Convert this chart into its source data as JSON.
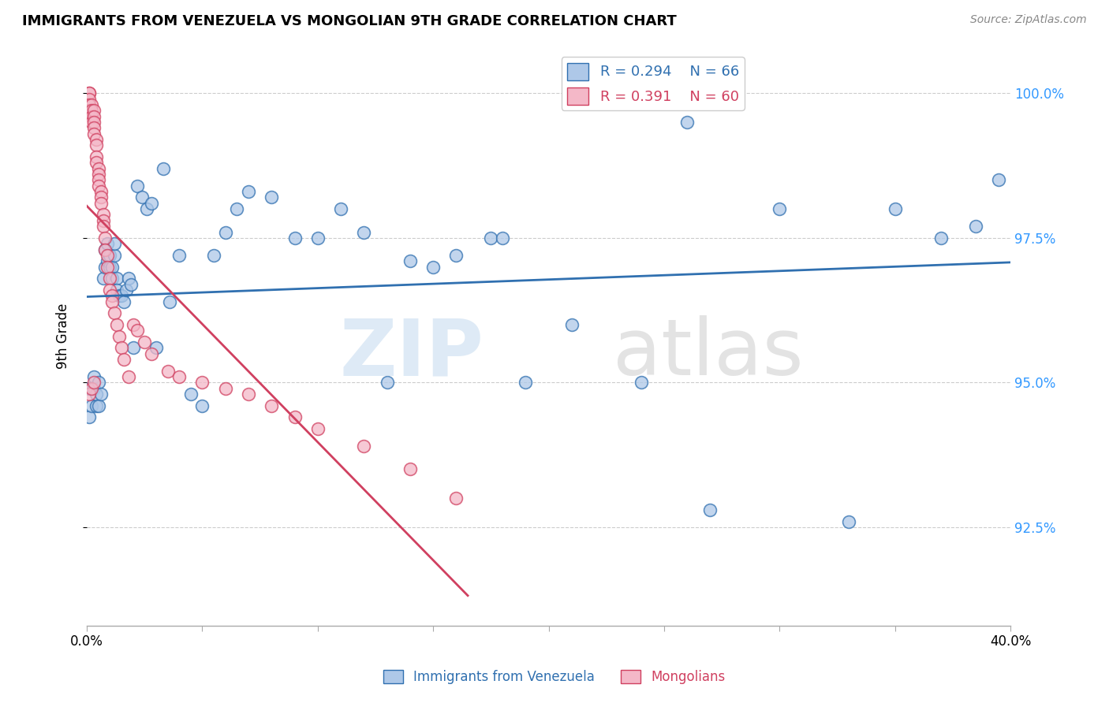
{
  "title": "IMMIGRANTS FROM VENEZUELA VS MONGOLIAN 9TH GRADE CORRELATION CHART",
  "source": "Source: ZipAtlas.com",
  "ylabel": "9th Grade",
  "x_min": 0.0,
  "x_max": 0.4,
  "y_min": 0.908,
  "y_max": 1.008,
  "x_ticks": [
    0.0,
    0.05,
    0.1,
    0.15,
    0.2,
    0.25,
    0.3,
    0.35,
    0.4
  ],
  "x_tick_labels": [
    "0.0%",
    "",
    "",
    "",
    "",
    "",
    "",
    "",
    "40.0%"
  ],
  "y_ticks": [
    0.925,
    0.95,
    0.975,
    1.0
  ],
  "y_tick_labels": [
    "92.5%",
    "95.0%",
    "97.5%",
    "100.0%"
  ],
  "legend_r1": "R = 0.294",
  "legend_n1": "N = 66",
  "legend_r2": "R = 0.391",
  "legend_n2": "N = 60",
  "blue_color": "#aec8e8",
  "pink_color": "#f4b8c8",
  "blue_line_color": "#3070b0",
  "pink_line_color": "#d04060",
  "blue_r": 0.294,
  "pink_r": 0.391,
  "blue_points_x": [
    0.001,
    0.001,
    0.002,
    0.003,
    0.003,
    0.004,
    0.004,
    0.005,
    0.005,
    0.006,
    0.007,
    0.008,
    0.008,
    0.009,
    0.009,
    0.01,
    0.01,
    0.011,
    0.011,
    0.012,
    0.012,
    0.013,
    0.013,
    0.014,
    0.015,
    0.016,
    0.017,
    0.018,
    0.019,
    0.02,
    0.022,
    0.024,
    0.026,
    0.028,
    0.03,
    0.033,
    0.036,
    0.04,
    0.045,
    0.05,
    0.055,
    0.06,
    0.065,
    0.07,
    0.08,
    0.09,
    0.1,
    0.11,
    0.12,
    0.13,
    0.14,
    0.15,
    0.16,
    0.175,
    0.19,
    0.21,
    0.24,
    0.27,
    0.3,
    0.33,
    0.35,
    0.37,
    0.385,
    0.395,
    0.26,
    0.18
  ],
  "blue_points_y": [
    0.949,
    0.944,
    0.946,
    0.949,
    0.951,
    0.946,
    0.948,
    0.946,
    0.95,
    0.948,
    0.968,
    0.97,
    0.973,
    0.971,
    0.974,
    0.97,
    0.972,
    0.97,
    0.968,
    0.972,
    0.974,
    0.968,
    0.966,
    0.965,
    0.965,
    0.964,
    0.966,
    0.968,
    0.967,
    0.956,
    0.984,
    0.982,
    0.98,
    0.981,
    0.956,
    0.987,
    0.964,
    0.972,
    0.948,
    0.946,
    0.972,
    0.976,
    0.98,
    0.983,
    0.982,
    0.975,
    0.975,
    0.98,
    0.976,
    0.95,
    0.971,
    0.97,
    0.972,
    0.975,
    0.95,
    0.96,
    0.95,
    0.928,
    0.98,
    0.926,
    0.98,
    0.975,
    0.977,
    0.985,
    0.995,
    0.975
  ],
  "pink_points_x": [
    0.001,
    0.001,
    0.001,
    0.001,
    0.001,
    0.002,
    0.002,
    0.002,
    0.002,
    0.003,
    0.003,
    0.003,
    0.003,
    0.003,
    0.004,
    0.004,
    0.004,
    0.004,
    0.005,
    0.005,
    0.005,
    0.005,
    0.006,
    0.006,
    0.006,
    0.007,
    0.007,
    0.007,
    0.008,
    0.008,
    0.009,
    0.009,
    0.01,
    0.01,
    0.011,
    0.011,
    0.012,
    0.013,
    0.014,
    0.015,
    0.016,
    0.018,
    0.02,
    0.022,
    0.025,
    0.028,
    0.035,
    0.04,
    0.05,
    0.06,
    0.07,
    0.08,
    0.09,
    0.1,
    0.12,
    0.14,
    0.16,
    0.001,
    0.002,
    0.003
  ],
  "pink_points_y": [
    1.0,
    1.0,
    0.999,
    0.998,
    0.997,
    0.998,
    0.997,
    0.996,
    0.995,
    0.997,
    0.996,
    0.995,
    0.994,
    0.993,
    0.992,
    0.991,
    0.989,
    0.988,
    0.987,
    0.986,
    0.985,
    0.984,
    0.983,
    0.982,
    0.981,
    0.979,
    0.978,
    0.977,
    0.975,
    0.973,
    0.972,
    0.97,
    0.968,
    0.966,
    0.965,
    0.964,
    0.962,
    0.96,
    0.958,
    0.956,
    0.954,
    0.951,
    0.96,
    0.959,
    0.957,
    0.955,
    0.952,
    0.951,
    0.95,
    0.949,
    0.948,
    0.946,
    0.944,
    0.942,
    0.939,
    0.935,
    0.93,
    0.948,
    0.949,
    0.95
  ]
}
